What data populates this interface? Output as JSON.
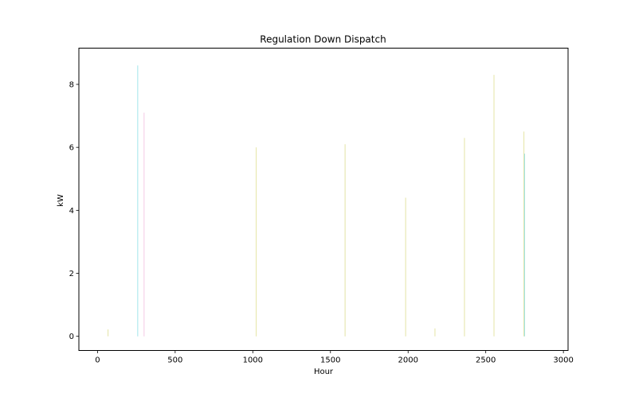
{
  "chart_data": {
    "type": "bar",
    "title": "Regulation Down Dispatch",
    "xlabel": "Hour",
    "ylabel": "kW",
    "xlim": [
      -120,
      3030
    ],
    "ylim": [
      -0.45,
      9.15
    ],
    "xticks": [
      0,
      500,
      1000,
      1500,
      2000,
      2500,
      3000
    ],
    "yticks": [
      0,
      2,
      4,
      6,
      8
    ],
    "grid": false,
    "series": [
      {
        "color": "#bcbd22",
        "points": [
          {
            "x": 68,
            "y": 0.22
          },
          {
            "x": 1022,
            "y": 6.0
          },
          {
            "x": 1594,
            "y": 6.1
          },
          {
            "x": 1984,
            "y": 4.4
          },
          {
            "x": 2173,
            "y": 0.25
          },
          {
            "x": 2363,
            "y": 6.3
          },
          {
            "x": 2553,
            "y": 8.3
          },
          {
            "x": 2746,
            "y": 6.5
          }
        ]
      },
      {
        "color": "#17becf",
        "points": [
          {
            "x": 259,
            "y": 8.6
          },
          {
            "x": 2750,
            "y": 5.8
          }
        ]
      },
      {
        "color": "#e377c2",
        "points": [
          {
            "x": 300,
            "y": 7.1
          }
        ]
      }
    ]
  }
}
